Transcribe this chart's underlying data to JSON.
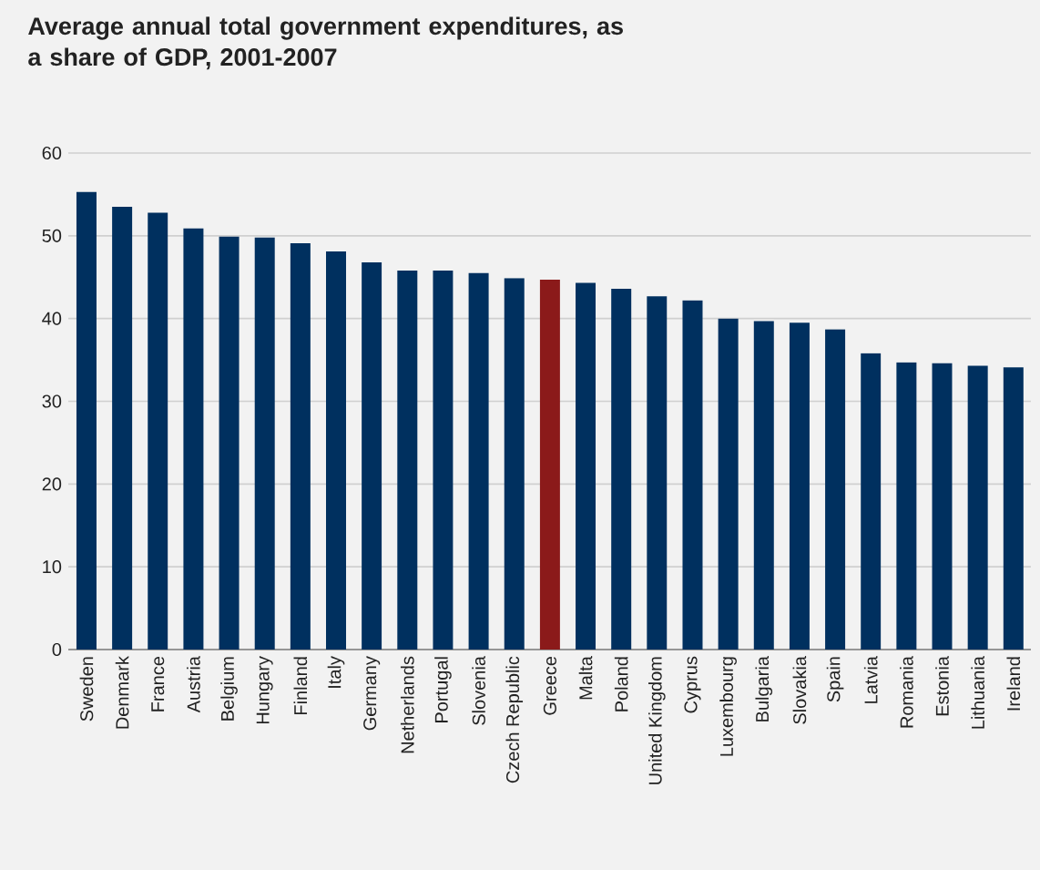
{
  "chart_data": {
    "type": "bar",
    "title": "Average annual total government expenditures, as a share of GDP, 2001-2007",
    "categories": [
      "Sweden",
      "Denmark",
      "France",
      "Austria",
      "Belgium",
      "Hungary",
      "Finland",
      "Italy",
      "Germany",
      "Netherlands",
      "Portugal",
      "Slovenia",
      "Czech Republic",
      "Greece",
      "Malta",
      "Poland",
      "United Kingdom",
      "Cyprus",
      "Luxembourg",
      "Bulgaria",
      "Slovakia",
      "Spain",
      "Latvia",
      "Romania",
      "Estonia",
      "Lithuania",
      "Ireland"
    ],
    "values": [
      55.3,
      53.5,
      52.8,
      50.9,
      49.9,
      49.8,
      49.1,
      48.1,
      46.8,
      45.8,
      45.8,
      45.5,
      44.9,
      44.7,
      44.3,
      43.6,
      42.7,
      42.2,
      40.0,
      39.7,
      39.5,
      38.7,
      35.8,
      34.7,
      34.6,
      34.3,
      34.1
    ],
    "colors": [
      "#00305f",
      "#00305f",
      "#00305f",
      "#00305f",
      "#00305f",
      "#00305f",
      "#00305f",
      "#00305f",
      "#00305f",
      "#00305f",
      "#00305f",
      "#00305f",
      "#00305f",
      "#8b1a1a",
      "#00305f",
      "#00305f",
      "#00305f",
      "#00305f",
      "#00305f",
      "#00305f",
      "#00305f",
      "#00305f",
      "#00305f",
      "#00305f",
      "#00305f",
      "#00305f",
      "#00305f"
    ],
    "ylim": [
      0,
      60
    ],
    "yticks": [
      0,
      10,
      20,
      30,
      40,
      50,
      60
    ],
    "grid": "y"
  }
}
